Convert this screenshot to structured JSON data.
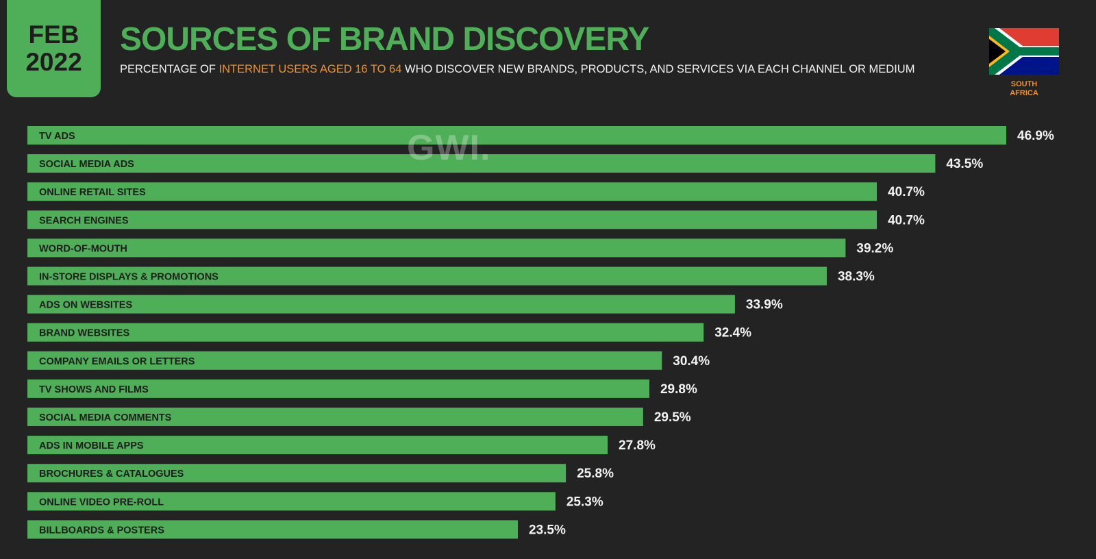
{
  "header": {
    "date_month": "FEB",
    "date_year": "2022",
    "title": "SOURCES OF BRAND DISCOVERY",
    "subtitle_pre": "PERCENTAGE OF ",
    "subtitle_highlight": "INTERNET USERS AGED  16 TO 64",
    "subtitle_post": " WHO DISCOVER NEW BRANDS, PRODUCTS, AND SERVICES VIA EACH CHANNEL OR MEDIUM",
    "country_line1": "SOUTH",
    "country_line2": "AFRICA",
    "watermark": "GWI."
  },
  "colors": {
    "background": "#232323",
    "bar": "#4fae58",
    "accent": "#f0922b",
    "text": "#f2f2f2",
    "bar_text": "#1d1d1d"
  },
  "chart_data": {
    "type": "bar",
    "orientation": "horizontal",
    "categories": [
      "TV ADS",
      "SOCIAL MEDIA ADS",
      "ONLINE RETAIL SITES",
      "SEARCH ENGINES",
      "WORD-OF-MOUTH",
      "IN-STORE DISPLAYS & PROMOTIONS",
      "ADS ON WEBSITES",
      "BRAND WEBSITES",
      "COMPANY EMAILS OR LETTERS",
      "TV SHOWS AND FILMS",
      "SOCIAL MEDIA COMMENTS",
      "ADS IN MOBILE APPS",
      "BROCHURES & CATALOGUES",
      "ONLINE VIDEO PRE-ROLL",
      "BILLBOARDS & POSTERS"
    ],
    "values": [
      46.9,
      43.5,
      40.7,
      40.7,
      39.2,
      38.3,
      33.9,
      32.4,
      30.4,
      29.8,
      29.5,
      27.8,
      25.8,
      25.3,
      23.5
    ],
    "value_labels": [
      "46.9%",
      "43.5%",
      "40.7%",
      "40.7%",
      "39.2%",
      "38.3%",
      "33.9%",
      "32.4%",
      "30.4%",
      "29.8%",
      "29.5%",
      "27.8%",
      "25.8%",
      "25.3%",
      "23.5%"
    ],
    "xlim": [
      0,
      46.9
    ],
    "grid": false
  }
}
